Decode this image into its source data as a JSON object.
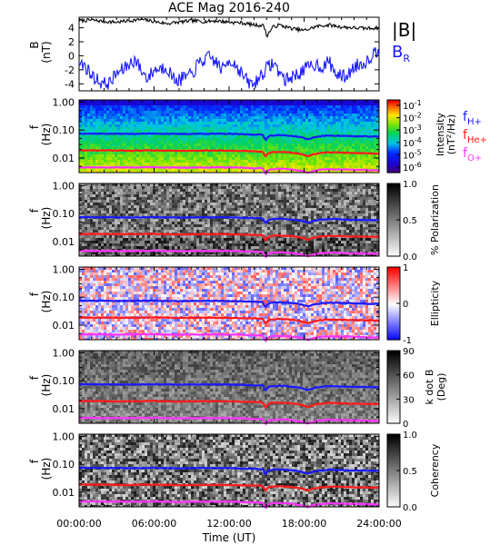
{
  "title": "ACE Mag 2016-240",
  "x_axis": {
    "label": "Time (UT)",
    "ticks": [
      "00:00:00",
      "06:00:00",
      "12:00:00",
      "18:00:00",
      "24:00:00"
    ],
    "range_hours": [
      0,
      24
    ]
  },
  "colors": {
    "b_total": "#000000",
    "b_radial": "#1a1aff",
    "f_h": "#1a1aff",
    "f_he": "#ff1a1a",
    "f_o": "#ff33ff"
  },
  "chart_data": [
    {
      "type": "line",
      "panel": "field",
      "ylabel": "B",
      "yunit": "(nT)",
      "ylim": [
        -5,
        5.5
      ],
      "yticks": [
        "4",
        "2",
        "0",
        "-2",
        "-4"
      ],
      "legend": [
        {
          "label": "|B|",
          "color": "#000000"
        },
        {
          "label": "B",
          "sub": "R",
          "color": "#1a1aff"
        }
      ],
      "series": [
        {
          "name": "|B|",
          "x_hours": [
            0,
            1,
            2,
            3,
            4,
            5,
            6,
            7,
            8,
            9,
            10,
            11,
            12,
            13,
            14,
            14.8,
            15,
            15.5,
            16,
            17,
            18,
            19,
            20,
            21,
            22,
            23,
            24
          ],
          "values": [
            5.0,
            5.1,
            4.9,
            4.8,
            5.0,
            5.2,
            4.9,
            4.6,
            4.8,
            5.0,
            4.9,
            5.0,
            4.8,
            4.7,
            4.4,
            4.3,
            2.8,
            4.1,
            4.4,
            3.9,
            3.6,
            4.2,
            4.4,
            4.1,
            4.0,
            3.9,
            4.0
          ]
        },
        {
          "name": "B R",
          "x_hours": [
            0,
            0.5,
            1,
            1.5,
            2,
            2.5,
            3,
            3.5,
            4,
            4.5,
            5,
            5.5,
            6,
            6.5,
            7,
            7.5,
            8,
            8.5,
            9,
            9.5,
            10,
            10.5,
            11,
            11.5,
            12,
            12.5,
            13,
            13.5,
            14,
            14.5,
            15,
            15.5,
            16,
            16.5,
            17,
            17.5,
            18,
            18.5,
            19,
            19.5,
            20,
            20.5,
            21,
            21.5,
            22,
            22.5,
            23,
            23.5,
            24
          ],
          "values": [
            -1.0,
            -1.5,
            -2.8,
            -3.5,
            -4.0,
            -3.8,
            -2.5,
            -2.0,
            -1.2,
            -0.5,
            -2.2,
            -3.2,
            -2.0,
            -1.8,
            -1.5,
            -3.2,
            -3.5,
            -3.0,
            -2.8,
            -1.2,
            -0.6,
            -0.2,
            -1.0,
            -2.0,
            -0.5,
            -1.2,
            -2.5,
            -3.8,
            -4.1,
            -2.8,
            -1.8,
            -1.0,
            -2.2,
            -3.5,
            -3.0,
            -2.6,
            -2.0,
            -1.5,
            -1.2,
            -1.6,
            -0.8,
            -2.5,
            -3.0,
            -2.8,
            -1.5,
            -1.2,
            -0.8,
            0.3,
            0.8
          ]
        }
      ]
    },
    {
      "type": "heatmap",
      "panel": "intensity",
      "ylabel": "f",
      "yunit": "(Hz)",
      "ylim": [
        0.003,
        1.2
      ],
      "yscale": "log",
      "yticks": [
        "1.00",
        "0.10",
        "0.01"
      ],
      "colorbar": {
        "label": "Intensity",
        "unit_pre": "(nT",
        "unit_sup": "2",
        "unit_post": "/Hz)",
        "ticks": [
          {
            "base": "10",
            "exp": "-1"
          },
          {
            "base": "10",
            "exp": "-2"
          },
          {
            "base": "10",
            "exp": "-3"
          },
          {
            "base": "10",
            "exp": "-4"
          },
          {
            "base": "10",
            "exp": "-5"
          },
          {
            "base": "10",
            "exp": "-6"
          }
        ],
        "scale": "rainbow"
      },
      "legend": [
        {
          "label": "f",
          "sub": "H+",
          "color": "#1a1aff"
        },
        {
          "label": "f",
          "sub": "He+",
          "color": "#ff1a1a"
        },
        {
          "label": "f",
          "sub": "O+",
          "color": "#ff33ff"
        }
      ]
    },
    {
      "type": "heatmap",
      "panel": "polarization",
      "ylabel": "f",
      "yunit": "(Hz)",
      "ylim": [
        0.003,
        1.2
      ],
      "yscale": "log",
      "yticks": [
        "1.00",
        "0.10",
        "0.01"
      ],
      "colorbar": {
        "label": "% Polarization",
        "ticks": [
          "1.0",
          "0.5",
          "0.0"
        ],
        "scale": "gray"
      }
    },
    {
      "type": "heatmap",
      "panel": "ellipticity",
      "ylabel": "f",
      "yunit": "(Hz)",
      "ylim": [
        0.003,
        1.2
      ],
      "yscale": "log",
      "yticks": [
        "1.00",
        "0.10",
        "0.01"
      ],
      "colorbar": {
        "label": "Ellipticity",
        "ticks": [
          "1",
          "0",
          "-1"
        ],
        "scale": "bwr"
      }
    },
    {
      "type": "heatmap",
      "panel": "kdotb",
      "ylabel": "f",
      "yunit": "(Hz)",
      "ylim": [
        0.003,
        1.2
      ],
      "yscale": "log",
      "yticks": [
        "1.00",
        "0.10",
        "0.01"
      ],
      "colorbar": {
        "label": "k dot B",
        "unit": "(Deg)",
        "ticks": [
          "90",
          "60",
          "30",
          "0"
        ],
        "scale": "gray"
      }
    },
    {
      "type": "heatmap",
      "panel": "coherency",
      "ylabel": "f",
      "yunit": "(Hz)",
      "ylim": [
        0.003,
        1.2
      ],
      "yscale": "log",
      "yticks": [
        "1.00",
        "0.10",
        "0.01"
      ],
      "colorbar": {
        "label": "Coherency",
        "ticks": [
          "1.0",
          "0.5",
          "0.0"
        ],
        "scale": "gray"
      }
    }
  ],
  "gyrofrequency_lines": {
    "x_hours": [
      0,
      2,
      4,
      6,
      8,
      10,
      12,
      13,
      14,
      14.7,
      14.9,
      15.1,
      15.4,
      16,
      16.8,
      17.5,
      18,
      18.3,
      18.7,
      19.3,
      20,
      21,
      22,
      23,
      24
    ],
    "f_h_hz": [
      0.075,
      0.074,
      0.073,
      0.075,
      0.072,
      0.074,
      0.073,
      0.071,
      0.069,
      0.068,
      0.042,
      0.058,
      0.064,
      0.066,
      0.063,
      0.058,
      0.052,
      0.046,
      0.054,
      0.06,
      0.064,
      0.062,
      0.06,
      0.059,
      0.058
    ],
    "f_he_hz": [
      0.0188,
      0.0186,
      0.0183,
      0.0188,
      0.018,
      0.0185,
      0.0183,
      0.0178,
      0.0173,
      0.017,
      0.0105,
      0.0145,
      0.016,
      0.0165,
      0.0158,
      0.0145,
      0.013,
      0.0115,
      0.0135,
      0.015,
      0.016,
      0.0155,
      0.015,
      0.0148,
      0.0145
    ],
    "f_o_hz": [
      0.0047,
      0.0046,
      0.0046,
      0.0047,
      0.0045,
      0.0046,
      0.0046,
      0.0045,
      0.0043,
      0.0043,
      0.0026,
      0.0036,
      0.004,
      0.0041,
      0.004,
      0.0036,
      0.0033,
      0.0029,
      0.0034,
      0.0038,
      0.004,
      0.0039,
      0.0038,
      0.0037,
      0.0036
    ]
  }
}
